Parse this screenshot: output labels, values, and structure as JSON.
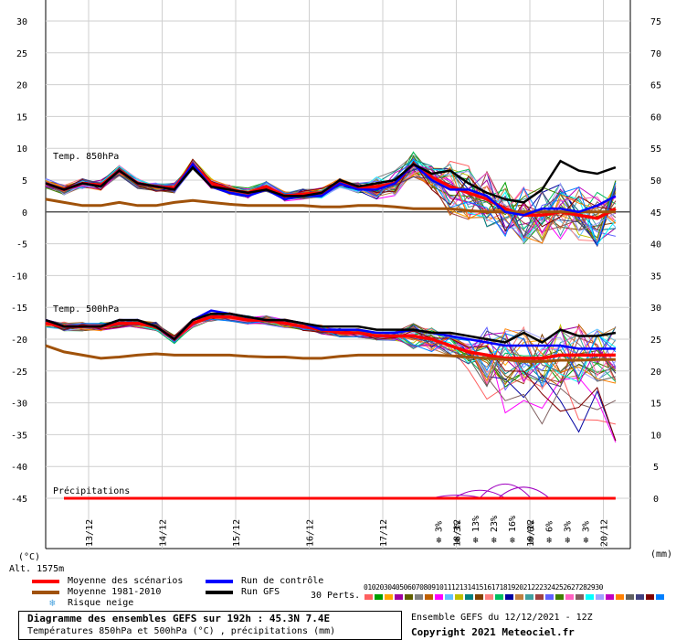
{
  "chart_data": {
    "type": "line",
    "title": "Diagramme des ensembles GEFS sur 192h : 45.3N 7.4E",
    "subtitle": "Températures 850hPa et 500hPa (°C) , précipitations (mm)",
    "ylabel_left": "(°C)",
    "ylabel_right": "(mm)",
    "altitude": "Alt. 1575m",
    "left_ticks": [
      "30",
      "25",
      "20",
      "15",
      "10",
      "5",
      "0",
      "-5",
      "-10",
      "-15",
      "-20",
      "-25",
      "-30",
      "-35",
      "-40",
      "-45"
    ],
    "right_ticks": [
      "75",
      "70",
      "65",
      "60",
      "55",
      "50",
      "45",
      "40",
      "35",
      "30",
      "25",
      "20",
      "15",
      "10",
      "5",
      "0"
    ],
    "x_labels": [
      "13/12",
      "14/12",
      "15/12",
      "16/12",
      "17/12",
      "18/12",
      "19/12",
      "20/12"
    ],
    "ylim": [
      -45,
      30
    ],
    "panel_labels": [
      "Temp. 850hPa",
      "Temp. 500hPa",
      "Précipitations"
    ],
    "x": [
      0,
      0.25,
      0.5,
      0.75,
      1,
      1.25,
      1.5,
      1.75,
      2,
      2.25,
      2.5,
      2.75,
      3,
      3.25,
      3.5,
      3.75,
      4,
      4.25,
      4.5,
      4.75,
      5,
      5.25,
      5.5,
      5.75,
      6,
      6.25,
      6.5,
      6.75,
      7,
      7.25,
      7.5,
      7.75
    ],
    "series": [
      {
        "name": "Moyenne des scénarios",
        "color": "#ff0000",
        "values_850": [
          4.5,
          3.5,
          4.5,
          4.2,
          6.5,
          4.5,
          4.0,
          3.8,
          7.5,
          4.5,
          3.5,
          3.0,
          4.0,
          2.5,
          2.8,
          3.0,
          4.5,
          3.8,
          4.0,
          4.5,
          7.5,
          5.5,
          4.0,
          3.0,
          2.0,
          0.5,
          -0.5,
          -0.5,
          0.0,
          -0.5,
          -1.0,
          0.5
        ],
        "values_500": [
          -17.5,
          -18,
          -18,
          -18,
          -17.5,
          -17.5,
          -18,
          -20,
          -17.5,
          -16.5,
          -16.5,
          -17,
          -17,
          -17.5,
          -18,
          -18.5,
          -19,
          -19,
          -19.5,
          -19.5,
          -19.5,
          -20,
          -21,
          -22,
          -22.5,
          -23,
          -23,
          -23,
          -22.5,
          -22.5,
          -22.5,
          -22.5
        ]
      },
      {
        "name": "Moyenne 1981-2010",
        "color": "#a0520a",
        "values_850": [
          2.0,
          1.5,
          1.0,
          1.0,
          1.5,
          1.0,
          1.0,
          1.5,
          1.8,
          1.5,
          1.2,
          1.0,
          1.0,
          1.0,
          1.0,
          0.8,
          0.8,
          1.0,
          1.0,
          0.8,
          0.5,
          0.5,
          0.5,
          0.2,
          0.0,
          0.0,
          0.0,
          0.0,
          0.0,
          0.0,
          0.0,
          0.0
        ],
        "values_500": [
          -21,
          -22,
          -22.5,
          -23,
          -22.8,
          -22.5,
          -22.3,
          -22.5,
          -22.5,
          -22.5,
          -22.5,
          -22.7,
          -22.8,
          -22.8,
          -23,
          -23,
          -22.7,
          -22.5,
          -22.5,
          -22.5,
          -22.5,
          -22.5,
          -22.6,
          -22.8,
          -23,
          -23.2,
          -23.5,
          -23.5,
          -23.3,
          -23.3,
          -23.2,
          -23.2
        ]
      },
      {
        "name": "Run de contrôle",
        "color": "#0000ff",
        "values_850": [
          4.5,
          3.5,
          4.5,
          4.0,
          6.5,
          4.5,
          4.0,
          3.5,
          7.5,
          4.0,
          3.0,
          2.5,
          3.5,
          2.0,
          2.5,
          2.5,
          4.5,
          3.5,
          3.5,
          4.5,
          7.5,
          5.0,
          3.5,
          3.5,
          2.5,
          0.0,
          -0.5,
          0.5,
          0.5,
          0.0,
          1.0,
          2.5
        ],
        "values_500": [
          -17,
          -18,
          -18,
          -18,
          -17,
          -17,
          -18,
          -20,
          -17,
          -15.5,
          -16,
          -16.5,
          -17,
          -17,
          -17.5,
          -18.5,
          -18.5,
          -18.5,
          -19,
          -19,
          -18.5,
          -19,
          -19.5,
          -20,
          -20.5,
          -21,
          -21,
          -21,
          -21,
          -21.5,
          -21.5,
          -21.5
        ]
      },
      {
        "name": "Run GFS",
        "color": "#000000",
        "values_850": [
          4.5,
          3.5,
          4.5,
          4.0,
          6.5,
          4.5,
          4.0,
          3.5,
          7.0,
          4.0,
          3.5,
          3.0,
          3.5,
          2.5,
          2.5,
          3.0,
          5.0,
          4.0,
          4.5,
          5.0,
          7.5,
          6.0,
          6.5,
          4.5,
          3.0,
          2.0,
          1.5,
          3.5,
          8.0,
          6.5,
          6.0,
          7.0
        ],
        "values_500": [
          -17,
          -18,
          -18,
          -18,
          -17,
          -17,
          -18,
          -20,
          -17,
          -16,
          -16,
          -16.5,
          -17,
          -17,
          -17.5,
          -18,
          -18,
          -18,
          -18.5,
          -18.5,
          -18.5,
          -19,
          -19,
          -19.5,
          -20,
          -20.5,
          -19,
          -20.5,
          -18.5,
          -19.5,
          -19.5,
          -19
        ]
      }
    ],
    "precip_mean_x_end": 7.75,
    "snow_risk": [
      {
        "day": 5.25,
        "pct": "3%"
      },
      {
        "day": 5.5,
        "pct": "3%"
      },
      {
        "day": 5.75,
        "pct": "13%"
      },
      {
        "day": 6.0,
        "pct": "23%"
      },
      {
        "day": 6.25,
        "pct": "16%"
      },
      {
        "day": 6.5,
        "pct": "6%"
      },
      {
        "day": 6.75,
        "pct": "6%"
      },
      {
        "day": 7.0,
        "pct": "3%"
      },
      {
        "day": 7.25,
        "pct": "3%"
      }
    ]
  },
  "legend": {
    "mean_label": "Moyenne des scénarios",
    "clim_label": "Moyenne 1981-2010",
    "snow_label": "Risque neige",
    "control_label": "Run de contrôle",
    "gfs_label": "Run GFS",
    "perts_label": "30 Perts.",
    "pert_numbers": "010203040506070809101112131415161718192021222324252627282930",
    "pert_colors": [
      "#ff6060",
      "#00a000",
      "#ffa500",
      "#a000a0",
      "#606000",
      "#808080",
      "#c06000",
      "#ff00ff",
      "#60c0ff",
      "#c0c000",
      "#008080",
      "#804000",
      "#ff8080",
      "#00c060",
      "#0000a0",
      "#c08040",
      "#40a0a0",
      "#a04040",
      "#6060ff",
      "#408000",
      "#ff60c0",
      "#806060",
      "#00ffff",
      "#a0a0ff",
      "#c000c0",
      "#ff8000",
      "#606060",
      "#404080",
      "#800000",
      "#0080ff"
    ]
  },
  "footer": {
    "title": "Diagramme des ensembles GEFS sur 192h : 45.3N 7.4E",
    "subtitle": "Températures 850hPa et 500hPa (°C) , précipitations (mm)",
    "ensemble": "Ensemble GEFS du 12/12/2021 - 12Z",
    "copyright": "Copyright 2021 Meteociel.fr"
  }
}
